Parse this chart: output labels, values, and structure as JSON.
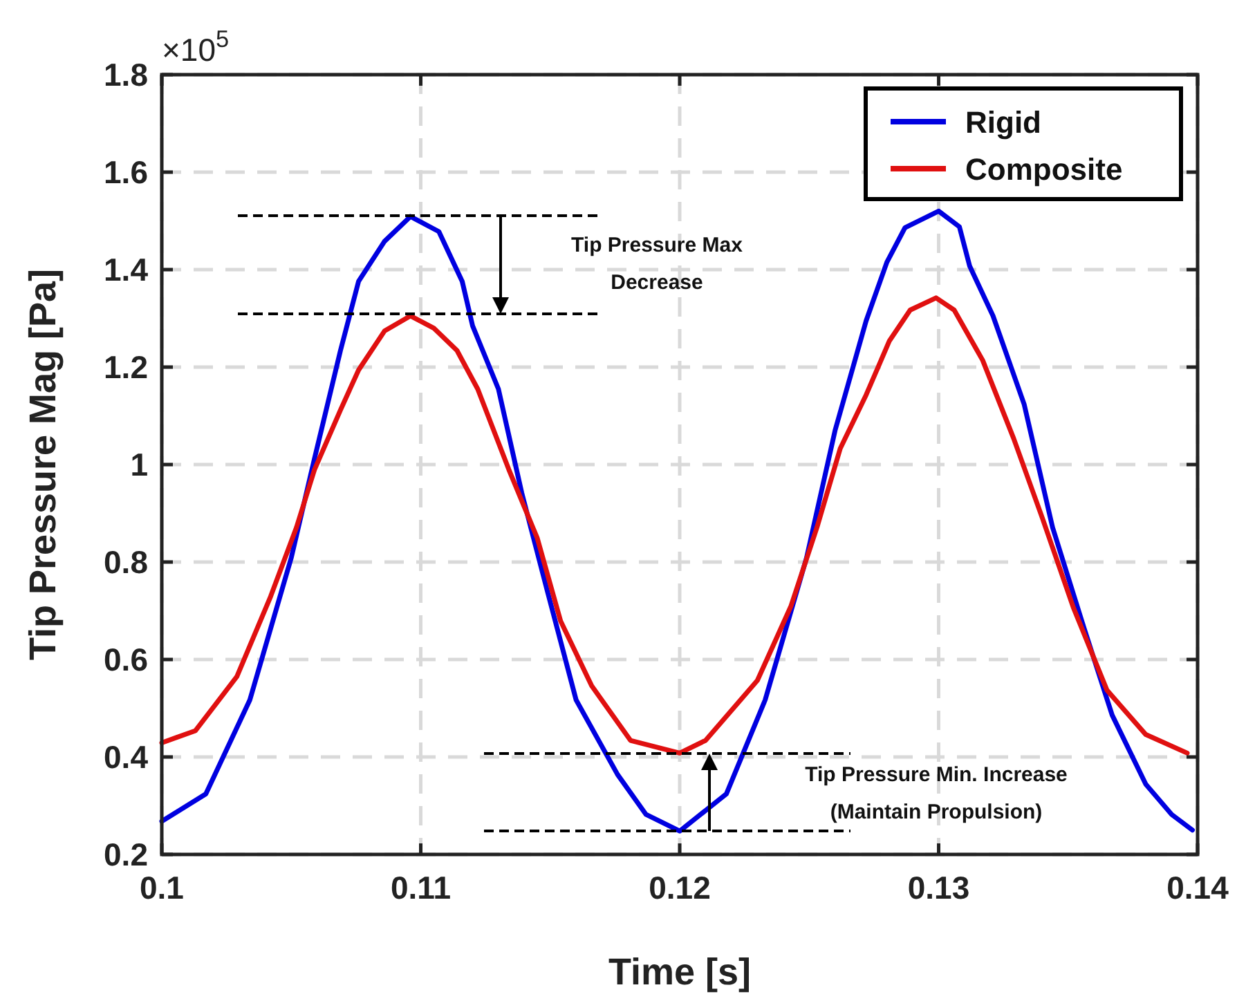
{
  "chart_data": {
    "type": "line",
    "xlabel": "Time [s]",
    "ylabel": "Tip Pressure Mag [Pa]",
    "xlim": [
      0.1,
      0.14
    ],
    "xticks": [
      0.1,
      0.11,
      0.12,
      0.13,
      0.14
    ],
    "ylim": [
      0.2,
      1.8
    ],
    "yticks": [
      0.2,
      0.4,
      0.6,
      0.8,
      1,
      1.2,
      1.4,
      1.6,
      1.8
    ],
    "grid": true,
    "legend": "top right",
    "line_style": "solid",
    "marker": "none",
    "annotations": [
      "×10$^{5}$",
      "Tip Pressure Max\nDecrease",
      "Tip Pressure Min. Increase\n(Maintain Propulsion)"
    ],
    "series": [
      {
        "name": "Rigid",
        "color": "#0000e0",
        "x": [
          0.1,
          0.1017,
          0.1034,
          0.105,
          0.1059,
          0.1069,
          0.1076,
          0.1086,
          0.1096,
          0.1107,
          0.1116,
          0.112,
          0.113,
          0.1139,
          0.1149,
          0.116,
          0.1176,
          0.1187,
          0.12,
          0.1218,
          0.1233,
          0.1249,
          0.126,
          0.1272,
          0.128,
          0.1287,
          0.13,
          0.1308,
          0.1312,
          0.1321,
          0.1333,
          0.1344,
          0.1356,
          0.1367,
          0.138,
          0.139,
          0.1398
        ],
        "values": [
          0.268,
          0.324,
          0.517,
          0.809,
          1.013,
          1.234,
          1.376,
          1.458,
          1.509,
          1.478,
          1.376,
          1.285,
          1.155,
          0.942,
          0.738,
          0.517,
          0.364,
          0.282,
          0.248,
          0.324,
          0.517,
          0.809,
          1.07,
          1.295,
          1.415,
          1.486,
          1.52,
          1.488,
          1.407,
          1.305,
          1.124,
          0.871,
          0.667,
          0.486,
          0.344,
          0.282,
          0.25
        ]
      },
      {
        "name": "Composite",
        "color": "#e01010",
        "x": [
          0.1,
          0.1013,
          0.1029,
          0.1042,
          0.1052,
          0.1059,
          0.1069,
          0.1076,
          0.1086,
          0.1096,
          0.1105,
          0.1114,
          0.1122,
          0.1134,
          0.1145,
          0.1154,
          0.1166,
          0.1181,
          0.12,
          0.121,
          0.123,
          0.1243,
          0.1253,
          0.1262,
          0.1272,
          0.1281,
          0.1289,
          0.1299,
          0.1306,
          0.1317,
          0.1329,
          0.134,
          0.1352,
          0.1365,
          0.138,
          0.1396
        ],
        "values": [
          0.429,
          0.454,
          0.565,
          0.729,
          0.871,
          0.99,
          1.112,
          1.194,
          1.274,
          1.305,
          1.28,
          1.234,
          1.155,
          0.99,
          0.849,
          0.679,
          0.546,
          0.434,
          0.408,
          0.434,
          0.557,
          0.71,
          0.871,
          1.033,
          1.143,
          1.254,
          1.317,
          1.342,
          1.317,
          1.214,
          1.053,
          0.891,
          0.707,
          0.537,
          0.446,
          0.408
        ]
      }
    ]
  }
}
